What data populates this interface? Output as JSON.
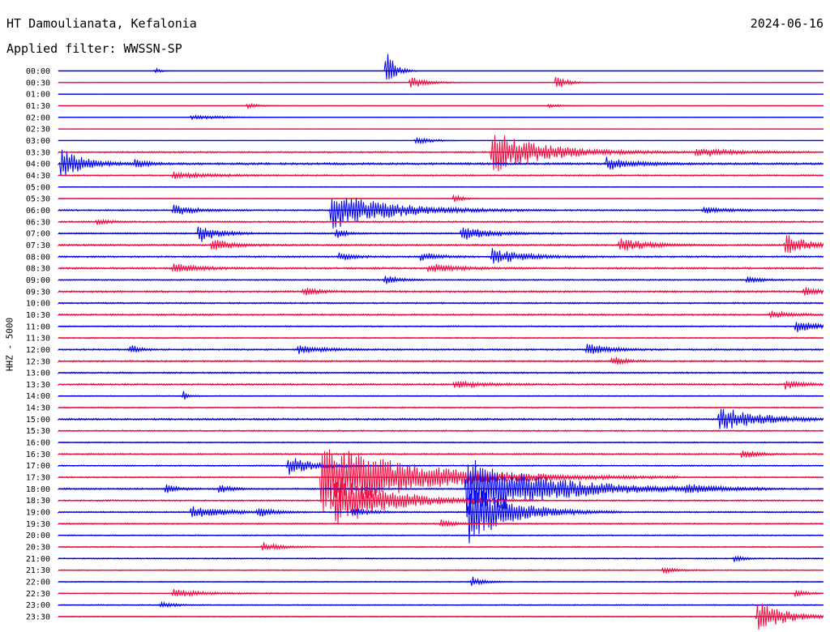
{
  "header": {
    "station": "HT Damoulianata, Kefalonia",
    "date": "2024-06-16",
    "filter_label": "Applied filter: WWSSN-SP"
  },
  "axis": {
    "channel_label": "HHZ - 5000"
  },
  "colors": {
    "trace_a": "#0000ee",
    "trace_b": "#ee0a40",
    "background": "#ffffff"
  },
  "chart_data": {
    "type": "line",
    "title": "HT Damoulianata, Kefalonia",
    "subtitle": "Applied filter: WWSSN-SP",
    "ylabel": "HHZ - 5000",
    "xlabel": "",
    "x_unit": "minutes past the row start",
    "x_range": [
      0,
      30
    ],
    "rows": [
      "00:00",
      "00:30",
      "01:00",
      "01:30",
      "02:00",
      "02:30",
      "03:00",
      "03:30",
      "04:00",
      "04:30",
      "05:00",
      "05:30",
      "06:00",
      "06:30",
      "07:00",
      "07:30",
      "08:00",
      "08:30",
      "09:00",
      "09:30",
      "10:00",
      "10:30",
      "11:00",
      "11:30",
      "12:00",
      "12:30",
      "13:00",
      "13:30",
      "14:00",
      "14:30",
      "15:00",
      "15:30",
      "16:00",
      "16:30",
      "17:00",
      "17:30",
      "18:00",
      "18:30",
      "19:00",
      "19:30",
      "20:00",
      "20:30",
      "21:00",
      "21:30",
      "22:00",
      "22:30",
      "23:00",
      "23:30"
    ],
    "row_colors": [
      "#0000ee",
      "#ee0a40"
    ],
    "noise": [
      0.12,
      0.3,
      0.05,
      0.2,
      0.22,
      0.12,
      0.12,
      0.65,
      0.9,
      0.6,
      0.35,
      0.3,
      0.6,
      0.7,
      0.6,
      0.75,
      0.7,
      0.8,
      0.55,
      0.8,
      0.65,
      0.7,
      0.55,
      0.6,
      0.7,
      0.7,
      0.65,
      0.75,
      0.45,
      0.6,
      0.8,
      0.6,
      0.5,
      0.6,
      0.55,
      0.6,
      0.65,
      0.6,
      0.6,
      0.55,
      0.5,
      0.55,
      0.5,
      0.45,
      0.45,
      0.45,
      0.45,
      0.45
    ],
    "events": [
      {
        "row": 0,
        "t": 12.85,
        "amp": 30,
        "dur": 0.3
      },
      {
        "row": 0,
        "t": 3.8,
        "amp": 4,
        "dur": 0.2
      },
      {
        "row": 1,
        "t": 13.8,
        "amp": 8,
        "dur": 0.6
      },
      {
        "row": 1,
        "t": 19.5,
        "amp": 10,
        "dur": 0.4
      },
      {
        "row": 3,
        "t": 7.4,
        "amp": 3,
        "dur": 0.5
      },
      {
        "row": 3,
        "t": 19.2,
        "amp": 3,
        "dur": 0.5
      },
      {
        "row": 4,
        "t": 5.2,
        "amp": 3,
        "dur": 1.2
      },
      {
        "row": 6,
        "t": 14.0,
        "amp": 6,
        "dur": 0.6
      },
      {
        "row": 7,
        "t": 17.0,
        "amp": 26,
        "dur": 2.0
      },
      {
        "row": 7,
        "t": 25.0,
        "amp": 6,
        "dur": 1.5
      },
      {
        "row": 8,
        "t": 0.1,
        "amp": 20,
        "dur": 0.8
      },
      {
        "row": 8,
        "t": 21.5,
        "amp": 8,
        "dur": 1.0
      },
      {
        "row": 8,
        "t": 3.0,
        "amp": 5,
        "dur": 0.5
      },
      {
        "row": 9,
        "t": 4.5,
        "amp": 4,
        "dur": 1.5
      },
      {
        "row": 11,
        "t": 15.5,
        "amp": 6,
        "dur": 0.3
      },
      {
        "row": 12,
        "t": 10.7,
        "amp": 24,
        "dur": 2.2
      },
      {
        "row": 12,
        "t": 4.5,
        "amp": 7,
        "dur": 0.8
      },
      {
        "row": 12,
        "t": 25.3,
        "amp": 4,
        "dur": 1.0
      },
      {
        "row": 13,
        "t": 1.5,
        "amp": 4,
        "dur": 0.5
      },
      {
        "row": 14,
        "t": 5.5,
        "amp": 12,
        "dur": 0.7
      },
      {
        "row": 14,
        "t": 15.8,
        "amp": 10,
        "dur": 1.0
      },
      {
        "row": 14,
        "t": 10.9,
        "amp": 8,
        "dur": 0.3
      },
      {
        "row": 15,
        "t": 6.0,
        "amp": 8,
        "dur": 0.8
      },
      {
        "row": 15,
        "t": 28.5,
        "amp": 14,
        "dur": 0.8
      },
      {
        "row": 15,
        "t": 22.0,
        "amp": 9,
        "dur": 1.0
      },
      {
        "row": 16,
        "t": 17.0,
        "amp": 10,
        "dur": 1.2
      },
      {
        "row": 16,
        "t": 14.2,
        "amp": 6,
        "dur": 0.6
      },
      {
        "row": 16,
        "t": 11.0,
        "amp": 5,
        "dur": 0.6
      },
      {
        "row": 17,
        "t": 4.5,
        "amp": 6,
        "dur": 1.0
      },
      {
        "row": 17,
        "t": 14.5,
        "amp": 6,
        "dur": 1.0
      },
      {
        "row": 18,
        "t": 12.8,
        "amp": 7,
        "dur": 0.5
      },
      {
        "row": 18,
        "t": 27.0,
        "amp": 5,
        "dur": 0.5
      },
      {
        "row": 19,
        "t": 9.6,
        "amp": 5,
        "dur": 0.6
      },
      {
        "row": 19,
        "t": 29.2,
        "amp": 5,
        "dur": 0.8
      },
      {
        "row": 21,
        "t": 27.9,
        "amp": 5,
        "dur": 0.8
      },
      {
        "row": 22,
        "t": 28.9,
        "amp": 8,
        "dur": 0.8
      },
      {
        "row": 24,
        "t": 2.8,
        "amp": 7,
        "dur": 0.3
      },
      {
        "row": 24,
        "t": 9.4,
        "amp": 5,
        "dur": 1.0
      },
      {
        "row": 24,
        "t": 20.7,
        "amp": 8,
        "dur": 0.8
      },
      {
        "row": 25,
        "t": 21.7,
        "amp": 6,
        "dur": 0.5
      },
      {
        "row": 27,
        "t": 28.5,
        "amp": 6,
        "dur": 0.6
      },
      {
        "row": 27,
        "t": 15.5,
        "amp": 5,
        "dur": 1.0
      },
      {
        "row": 28,
        "t": 4.9,
        "amp": 6,
        "dur": 0.2
      },
      {
        "row": 30,
        "t": 25.9,
        "amp": 16,
        "dur": 1.5
      },
      {
        "row": 33,
        "t": 26.8,
        "amp": 7,
        "dur": 0.5
      },
      {
        "row": 34,
        "t": 9.0,
        "amp": 12,
        "dur": 1.0
      },
      {
        "row": 35,
        "t": 10.3,
        "amp": 45,
        "dur": 3.5
      },
      {
        "row": 36,
        "t": 16.0,
        "amp": 40,
        "dur": 3.0
      },
      {
        "row": 36,
        "t": 4.2,
        "amp": 7,
        "dur": 0.4
      },
      {
        "row": 36,
        "t": 6.3,
        "amp": 6,
        "dur": 0.4
      },
      {
        "row": 36,
        "t": 24.6,
        "amp": 5,
        "dur": 1.0
      },
      {
        "row": 37,
        "t": 10.8,
        "amp": 35,
        "dur": 2.0
      },
      {
        "row": 38,
        "t": 5.2,
        "amp": 8,
        "dur": 1.2
      },
      {
        "row": 38,
        "t": 7.8,
        "amp": 7,
        "dur": 0.5
      },
      {
        "row": 38,
        "t": 11.5,
        "amp": 6,
        "dur": 0.6
      },
      {
        "row": 38,
        "t": 16.1,
        "amp": 40,
        "dur": 1.5
      },
      {
        "row": 39,
        "t": 15.0,
        "amp": 5,
        "dur": 0.5
      },
      {
        "row": 41,
        "t": 8.0,
        "amp": 6,
        "dur": 0.6
      },
      {
        "row": 42,
        "t": 26.5,
        "amp": 5,
        "dur": 0.3
      },
      {
        "row": 43,
        "t": 23.7,
        "amp": 4,
        "dur": 0.5
      },
      {
        "row": 44,
        "t": 16.2,
        "amp": 7,
        "dur": 0.4
      },
      {
        "row": 45,
        "t": 4.5,
        "amp": 5,
        "dur": 1.2
      },
      {
        "row": 45,
        "t": 28.9,
        "amp": 4,
        "dur": 0.5
      },
      {
        "row": 46,
        "t": 4.0,
        "amp": 4,
        "dur": 0.5
      },
      {
        "row": 47,
        "t": 27.4,
        "amp": 22,
        "dur": 1.0
      }
    ]
  }
}
